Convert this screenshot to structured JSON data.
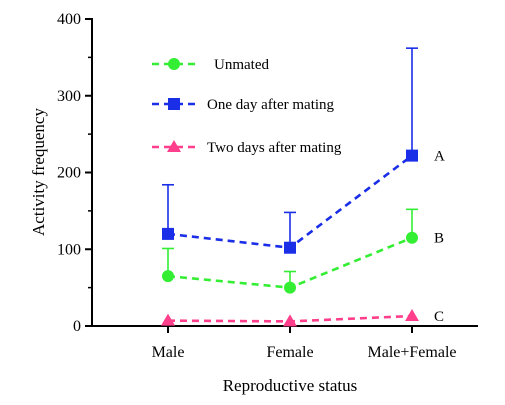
{
  "chart_data": {
    "type": "line",
    "xlabel": "Reproductive status",
    "ylabel": "Activity frequency",
    "ylim": [
      0,
      400
    ],
    "y_ticks": [
      0,
      100,
      200,
      300,
      400
    ],
    "categories": [
      "Male",
      "Female",
      "Male+Female"
    ],
    "grid": false,
    "legend_position": "top-left",
    "series": [
      {
        "name": "Unmated",
        "marker": "circle",
        "color": "#33ee33",
        "values": [
          65,
          50,
          115
        ],
        "error_upper": [
          101,
          71,
          152
        ]
      },
      {
        "name": "One day after mating",
        "marker": "square",
        "color": "#1a2ee8",
        "values": [
          120,
          102,
          222
        ],
        "error_upper": [
          184,
          148,
          362
        ]
      },
      {
        "name": "Two days after mating",
        "marker": "triangle",
        "color": "#ff3e8c",
        "values": [
          7,
          6,
          13
        ],
        "error_upper": [
          7,
          6,
          13
        ]
      }
    ],
    "group_letters": [
      {
        "label": "A",
        "value": 222
      },
      {
        "label": "B",
        "value": 115
      },
      {
        "label": "C",
        "value": 13
      }
    ]
  }
}
